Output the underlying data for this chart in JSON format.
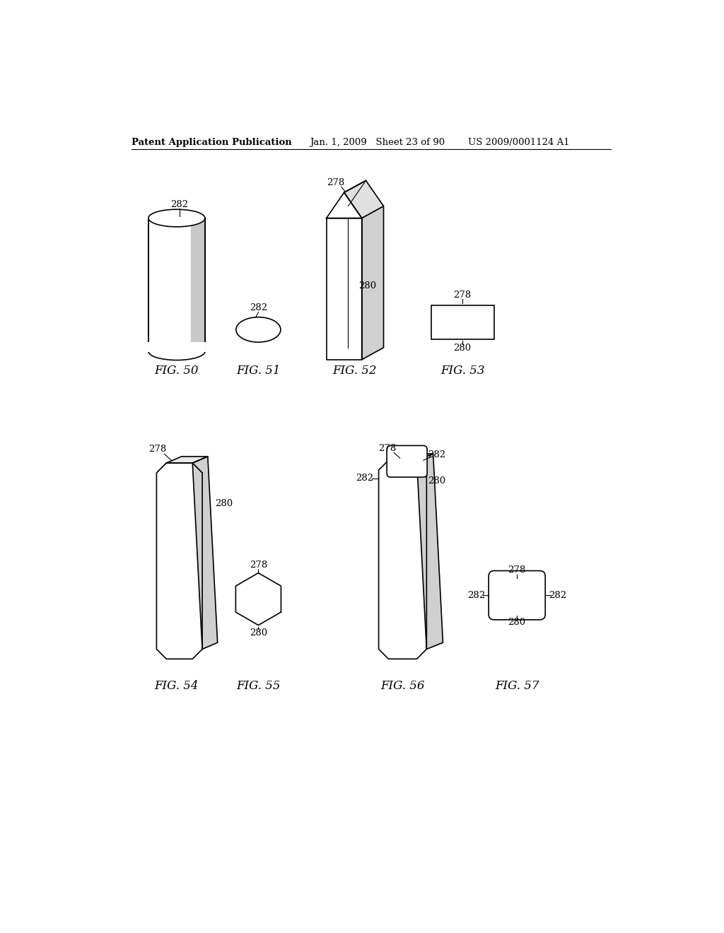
{
  "bg_color": "#ffffff",
  "header_left": "Patent Application Publication",
  "header_mid": "Jan. 1, 2009   Sheet 23 of 90",
  "header_right": "US 2009/0001124 A1",
  "fig50_label": "FIG. 50",
  "fig51_label": "FIG. 51",
  "fig52_label": "FIG. 52",
  "fig53_label": "FIG. 53",
  "fig54_label": "FIG. 54",
  "fig55_label": "FIG. 55",
  "fig56_label": "FIG. 56",
  "fig57_label": "FIG. 57",
  "label_282": "282",
  "label_278": "278",
  "label_280": "280",
  "line_color": "#000000",
  "line_width": 1.2,
  "font_size_label": 9.5,
  "font_size_fig": 12,
  "font_size_header": 9.5,
  "shade_color": "#d0d0d0",
  "white": "#ffffff"
}
